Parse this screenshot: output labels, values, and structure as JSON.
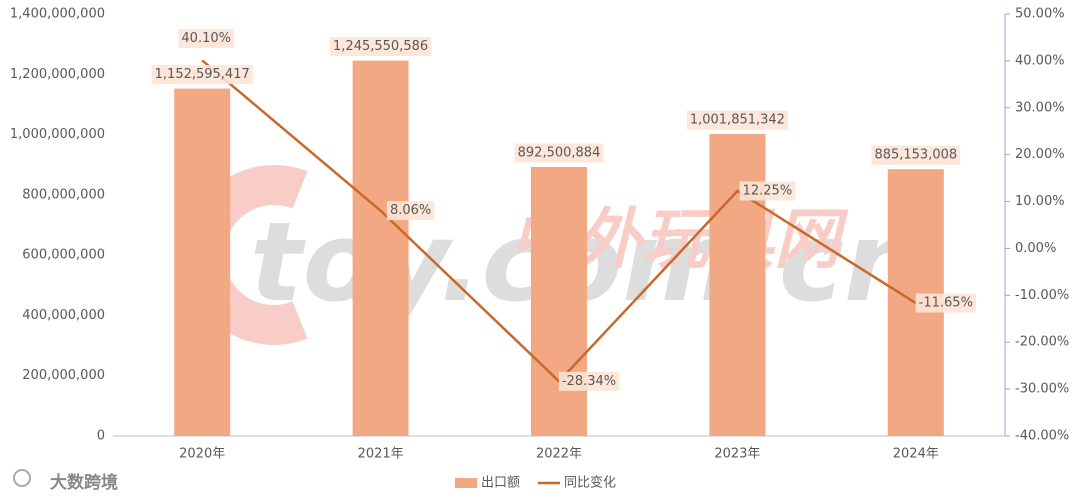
{
  "chart_data": {
    "type": "bar_line",
    "categories": [
      "2020年",
      "2021年",
      "2022年",
      "2023年",
      "2024年"
    ],
    "series": [
      {
        "name": "出口额",
        "type": "bar",
        "color": "#f2a882",
        "values": [
          1152595417,
          1245550586,
          892500884,
          1001851342,
          885153008
        ],
        "value_labels": [
          "1,152,595,417",
          "1,245,550,586",
          "892,500,884",
          "1,001,851,342",
          "885,153,008"
        ]
      },
      {
        "name": "同比变化",
        "type": "line",
        "axis": "y2",
        "color": "#c8692c",
        "values": [
          40.1,
          8.06,
          -28.34,
          12.25,
          -11.65
        ],
        "value_labels": [
          "40.10%",
          "8.06%",
          "-28.34%",
          "12.25%",
          "-11.65%"
        ]
      }
    ],
    "ylim": [
      0,
      1400000000
    ],
    "yticks": [
      0,
      {
        "value": 200000000,
        "label": "200,000,000"
      },
      {
        "value": 400000000,
        "label": "400,000,000"
      },
      {
        "value": 600000000,
        "label": "600,000,000"
      },
      {
        "value": 800000000,
        "label": "800,000,000"
      },
      {
        "value": 1000000000,
        "label": "1,000,000,000"
      },
      {
        "value": 1200000000,
        "label": "1,200,000,000"
      },
      {
        "value": 1400000000,
        "label": "1,400,000,000"
      }
    ],
    "y2lim": [
      -40,
      50
    ],
    "y2ticks": [
      {
        "value": -40,
        "label": "-40.00%"
      },
      {
        "value": -30,
        "label": "-30.00%"
      },
      {
        "value": -20,
        "label": "-20.00%"
      },
      {
        "value": -10,
        "label": "-10.00%"
      },
      {
        "value": 0,
        "label": "0.00%"
      },
      {
        "value": 10,
        "label": "10.00%"
      },
      {
        "value": 20,
        "label": "20.00%"
      },
      {
        "value": 30,
        "label": "30.00%"
      },
      {
        "value": 40,
        "label": "40.00%"
      },
      {
        "value": 50,
        "label": "50.00%"
      }
    ],
    "legend": "bottom",
    "watermark": [
      "toy.com.cn",
      "中外玩具网"
    ],
    "credit": "大数跨境"
  }
}
